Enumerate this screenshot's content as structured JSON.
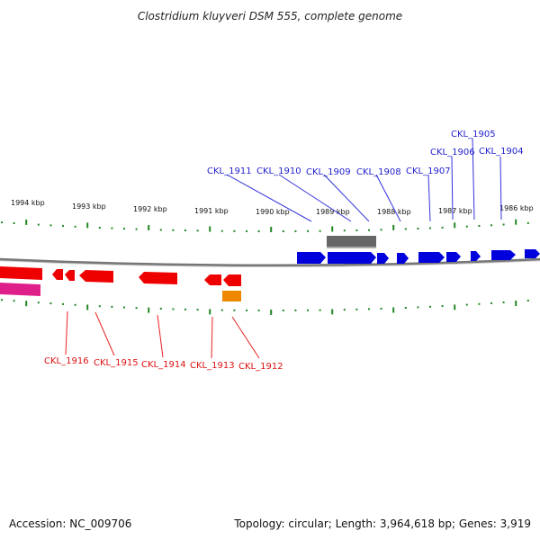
{
  "title": "Clostridium kluyveri DSM 555, complete genome",
  "footer": {
    "accession": "Accession: NC_009706",
    "summary": "Topology: circular; Length: 3,964,618 bp; Genes: 3,919"
  },
  "colors": {
    "forward_gene": "#0000dd",
    "reverse_gene": "#ee0000",
    "tick": "#228822",
    "backbone": "#888888",
    "forward_label": "#2222cc",
    "reverse_label": "#dd1111"
  },
  "ticks": [
    "1994 kbp",
    "1993 kbp",
    "1992 kbp",
    "1991 kbp",
    "1990 kbp",
    "1989 kbp",
    "1988 kbp",
    "1987 kbp",
    "1986 kbp"
  ],
  "forward_labels": [
    "CKL_1911",
    "CKL_1910",
    "CKL_1909",
    "CKL_1908",
    "CKL_1907",
    "CKL_1906",
    "CKL_1905",
    "CKL_1904"
  ],
  "reverse_labels": [
    "CKL_1916",
    "CKL_1915",
    "CKL_1914",
    "CKL_1913",
    "CKL_1912"
  ]
}
